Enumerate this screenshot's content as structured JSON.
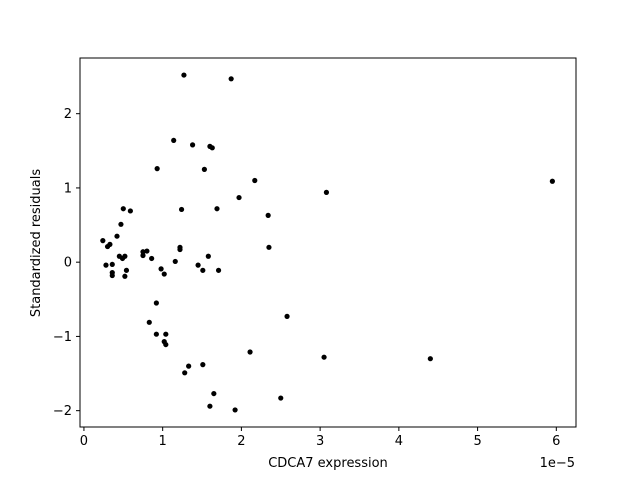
{
  "chart_data": {
    "type": "scatter",
    "xlabel": "CDCA7 expression",
    "ylabel": "Standardized residuals",
    "x_scale_label": "1e−5",
    "x_unit_multiplier": 1e-05,
    "xlim": [
      -0.05,
      6.25
    ],
    "ylim": [
      -2.22,
      2.75
    ],
    "x_ticks": [
      0,
      1,
      2,
      3,
      4,
      5,
      6
    ],
    "x_tick_labels": [
      "0",
      "1",
      "2",
      "3",
      "4",
      "5",
      "6"
    ],
    "y_ticks": [
      -2,
      -1,
      0,
      1,
      2
    ],
    "y_tick_labels": [
      "−2",
      "−1",
      "0",
      "1",
      "2"
    ],
    "grid": false,
    "marker_color": "#000000",
    "series": [
      {
        "points": [
          [
            1.27,
            2.52
          ],
          [
            1.87,
            2.47
          ],
          [
            1.14,
            1.64
          ],
          [
            1.38,
            1.58
          ],
          [
            1.6,
            1.56
          ],
          [
            1.63,
            1.54
          ],
          [
            0.93,
            1.26
          ],
          [
            1.53,
            1.25
          ],
          [
            2.17,
            1.1
          ],
          [
            5.95,
            1.09
          ],
          [
            3.08,
            0.94
          ],
          [
            1.97,
            0.87
          ],
          [
            0.5,
            0.72
          ],
          [
            0.59,
            0.69
          ],
          [
            1.24,
            0.71
          ],
          [
            1.69,
            0.72
          ],
          [
            2.34,
            0.63
          ],
          [
            0.47,
            0.51
          ],
          [
            0.42,
            0.35
          ],
          [
            0.24,
            0.29
          ],
          [
            0.33,
            0.24
          ],
          [
            0.3,
            0.21
          ],
          [
            1.22,
            0.2
          ],
          [
            1.22,
            0.17
          ],
          [
            2.35,
            0.2
          ],
          [
            0.8,
            0.15
          ],
          [
            0.75,
            0.14
          ],
          [
            0.75,
            0.09
          ],
          [
            0.45,
            0.08
          ],
          [
            0.52,
            0.08
          ],
          [
            0.49,
            0.05
          ],
          [
            0.86,
            0.05
          ],
          [
            1.58,
            0.08
          ],
          [
            1.16,
            0.01
          ],
          [
            0.28,
            -0.04
          ],
          [
            0.36,
            -0.03
          ],
          [
            1.45,
            -0.04
          ],
          [
            0.98,
            -0.09
          ],
          [
            1.51,
            -0.11
          ],
          [
            1.71,
            -0.11
          ],
          [
            0.54,
            -0.11
          ],
          [
            0.36,
            -0.14
          ],
          [
            0.36,
            -0.18
          ],
          [
            0.52,
            -0.19
          ],
          [
            1.02,
            -0.16
          ],
          [
            0.92,
            -0.55
          ],
          [
            2.58,
            -0.73
          ],
          [
            0.83,
            -0.81
          ],
          [
            0.92,
            -0.97
          ],
          [
            1.04,
            -0.97
          ],
          [
            1.02,
            -1.07
          ],
          [
            1.04,
            -1.11
          ],
          [
            2.11,
            -1.21
          ],
          [
            3.05,
            -1.28
          ],
          [
            4.4,
            -1.3
          ],
          [
            1.51,
            -1.38
          ],
          [
            1.33,
            -1.4
          ],
          [
            1.28,
            -1.49
          ],
          [
            1.65,
            -1.77
          ],
          [
            2.5,
            -1.83
          ],
          [
            1.6,
            -1.94
          ],
          [
            1.92,
            -1.99
          ]
        ]
      }
    ]
  }
}
